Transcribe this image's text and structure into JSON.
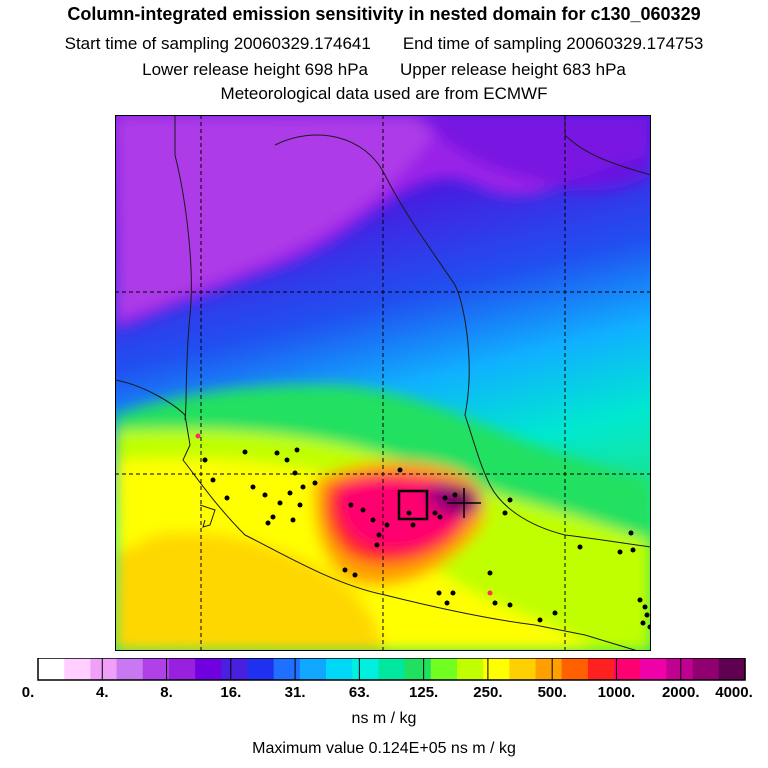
{
  "header": {
    "title": "Column-integrated emission sensitivity in nested domain for c130_060329",
    "start_label": "Start time of sampling 20060329.174641",
    "end_label": "End time of sampling 20060329.174753",
    "lower_label": "Lower release height  698 hPa",
    "upper_label": "Upper release height  683 hPa",
    "met_label": "Meteorological data used are from ECMWF"
  },
  "colors": {
    "map_line": "#1a1a1a",
    "grid_line": "#000000",
    "hotspot": "#000000",
    "marker": "#000000"
  },
  "chart_data": {
    "type": "heatmap",
    "title": "Column-integrated emission sensitivity in nested domain for c130_060329",
    "colorbar": {
      "units": "ns m / kg",
      "tick_labels": [
        "0.",
        "4.",
        "8.",
        "16.",
        "31.",
        "63.",
        "125.",
        "250.",
        "500.",
        "1000.",
        "2000.",
        "4000."
      ],
      "bins": [
        "#ffffff",
        "#ffd0ff",
        "#f0a0f8",
        "#c878f0",
        "#b040e8",
        "#9a20e0",
        "#7000e0",
        "#4a20e0",
        "#2030f0",
        "#2070ff",
        "#10a8ff",
        "#00d8f8",
        "#00f0e0",
        "#00e8a0",
        "#20e060",
        "#70ff20",
        "#c0ff00",
        "#ffff00",
        "#ffd000",
        "#ffa000",
        "#ff6000",
        "#ff2020",
        "#ff0070",
        "#f000a8",
        "#c00090",
        "#900070",
        "#600050"
      ]
    },
    "max_value_label": "Maximum value  0.124E+05 ns m / kg",
    "grid": true,
    "receptor": "square marker with cross near center of high-sensitivity plume"
  }
}
